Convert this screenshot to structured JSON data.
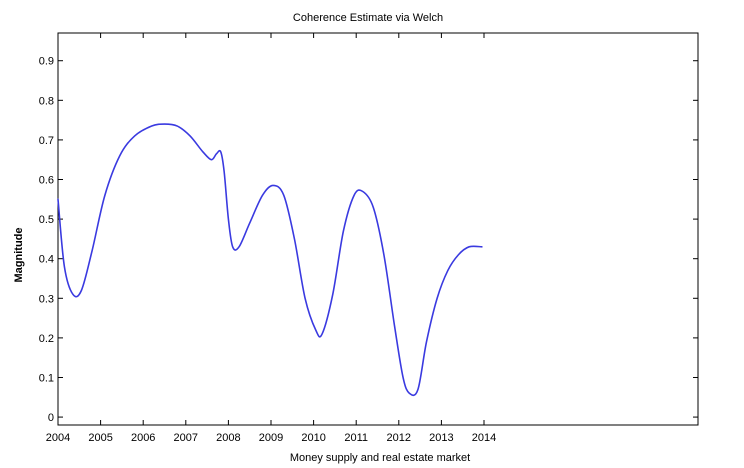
{
  "chart_data": {
    "type": "line",
    "title": "Coherence Estimate via Welch",
    "xlabel": "Money supply and real estate market",
    "ylabel": "Magnitude",
    "xlim": [
      2004,
      2014
    ],
    "ylim": [
      -0.02,
      0.97
    ],
    "x_ticks": [
      2004,
      2005,
      2006,
      2007,
      2008,
      2009,
      2010,
      2011,
      2012,
      2013,
      2014
    ],
    "x_tick_labels": [
      "2004",
      "2005",
      "2006",
      "2007",
      "2008",
      "2009",
      "2010",
      "2011",
      "2012",
      "2013",
      "2014"
    ],
    "y_ticks": [
      0,
      0.1,
      0.2,
      0.3,
      0.4,
      0.5,
      0.6,
      0.7,
      0.8,
      0.9
    ],
    "y_tick_labels": [
      "0",
      "0.1",
      "0.2",
      "0.3",
      "0.4",
      "0.5",
      "0.6",
      "0.7",
      "0.8",
      "0.9"
    ],
    "grid": false,
    "legend": "none",
    "line_color": "#3a3ae0",
    "series": [
      {
        "x": [
          2004.0,
          2004.15,
          2004.35,
          2004.55,
          2004.8,
          2005.1,
          2005.45,
          2005.8,
          2006.2,
          2006.5,
          2006.8,
          2007.1,
          2007.4,
          2007.6,
          2007.72,
          2007.82,
          2007.9,
          2008.0,
          2008.1,
          2008.25,
          2008.5,
          2008.8,
          2009.05,
          2009.3,
          2009.55,
          2009.8,
          2010.05,
          2010.2,
          2010.45,
          2010.7,
          2010.95,
          2011.15,
          2011.4,
          2011.65,
          2011.9,
          2012.1,
          2012.25,
          2012.45,
          2012.65,
          2012.9,
          2013.15,
          2013.4,
          2013.65,
          2013.95
        ],
        "y": [
          0.55,
          0.38,
          0.31,
          0.32,
          0.42,
          0.56,
          0.66,
          0.71,
          0.735,
          0.74,
          0.735,
          0.71,
          0.67,
          0.65,
          0.665,
          0.67,
          0.62,
          0.5,
          0.43,
          0.43,
          0.49,
          0.56,
          0.585,
          0.56,
          0.45,
          0.3,
          0.22,
          0.21,
          0.31,
          0.47,
          0.56,
          0.57,
          0.53,
          0.41,
          0.23,
          0.1,
          0.06,
          0.07,
          0.19,
          0.3,
          0.37,
          0.41,
          0.43,
          0.43
        ]
      }
    ]
  }
}
